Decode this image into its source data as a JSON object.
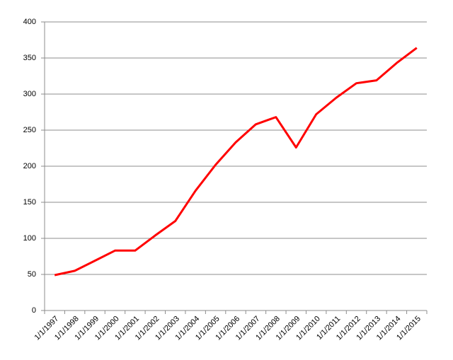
{
  "chart_data": {
    "type": "line",
    "categories": [
      "1/1/1997",
      "1/1/1998",
      "1/1/1999",
      "1/1/2000",
      "1/1/2001",
      "1/1/2002",
      "1/1/2003",
      "1/1/2004",
      "1/1/2005",
      "1/1/2006",
      "1/1/2007",
      "1/1/2008",
      "1/1/2009",
      "1/1/2010",
      "1/1/2011",
      "1/1/2012",
      "1/1/2013",
      "1/1/2014",
      "1/1/2015"
    ],
    "values": [
      49,
      55,
      69,
      83,
      83,
      104,
      124,
      166,
      202,
      233,
      258,
      268,
      226,
      272,
      295,
      315,
      319,
      343,
      364
    ],
    "color": "#ff0000",
    "ylim": [
      0,
      400
    ],
    "yticks": [
      0,
      50,
      100,
      150,
      200,
      250,
      300,
      350,
      400
    ],
    "grid": true
  }
}
